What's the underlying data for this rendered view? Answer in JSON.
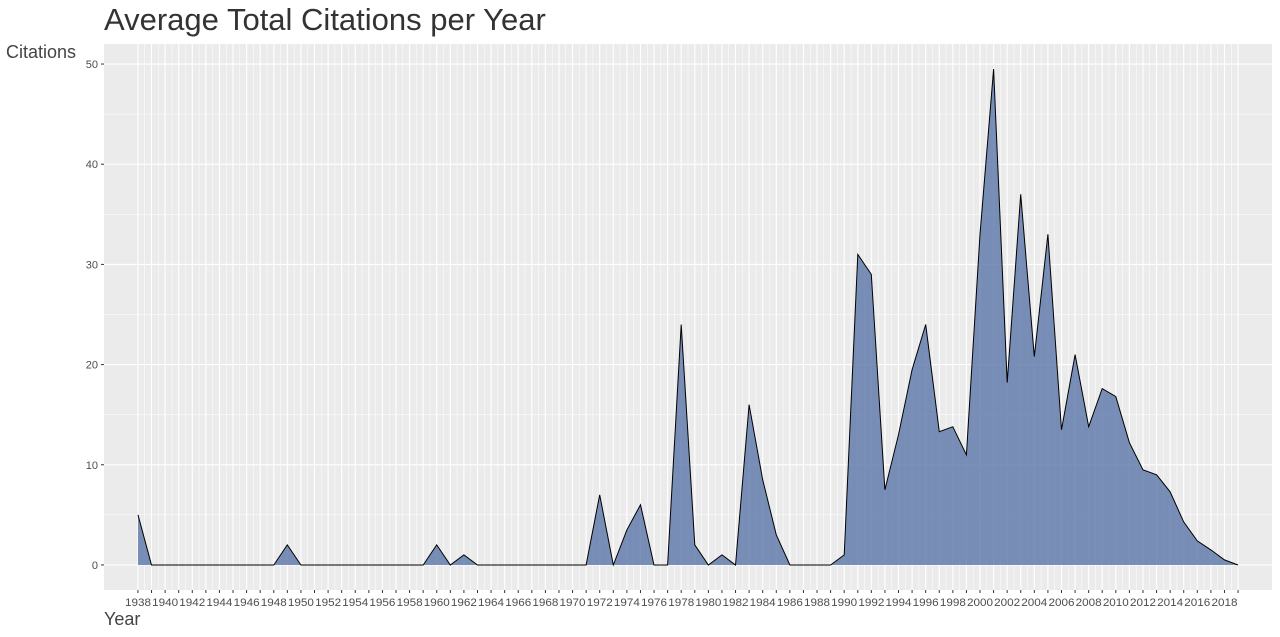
{
  "chart_data": {
    "type": "area",
    "title": "Average Total Citations per Year",
    "xlabel": "Year",
    "ylabel": "Citations",
    "xlim": [
      1935.5,
      2021.5
    ],
    "ylim": [
      -2.5,
      52
    ],
    "y_ticks": [
      0,
      10,
      20,
      30,
      40,
      50
    ],
    "x_ticks": [
      1938,
      1940,
      1942,
      1944,
      1946,
      1948,
      1950,
      1952,
      1954,
      1956,
      1958,
      1960,
      1962,
      1964,
      1966,
      1968,
      1970,
      1972,
      1974,
      1976,
      1978,
      1980,
      1982,
      1984,
      1986,
      1988,
      1990,
      1992,
      1994,
      1996,
      1998,
      2000,
      2002,
      2004,
      2006,
      2008,
      2010,
      2012,
      2014,
      2016,
      2018
    ],
    "grid": true,
    "colors": {
      "fill": "#5a75a8",
      "line": "#000000",
      "panel": "#ebebeb",
      "grid": "#ffffff"
    },
    "series": [
      {
        "x": [
          1938,
          1939,
          1940,
          1941,
          1942,
          1943,
          1944,
          1945,
          1946,
          1947,
          1948,
          1949,
          1950,
          1951,
          1952,
          1953,
          1954,
          1955,
          1956,
          1957,
          1958,
          1959,
          1960,
          1961,
          1962,
          1963,
          1964,
          1965,
          1966,
          1967,
          1968,
          1969,
          1970,
          1971,
          1972,
          1973,
          1974,
          1975,
          1976,
          1977,
          1978,
          1979,
          1980,
          1981,
          1982,
          1983,
          1984,
          1985,
          1986,
          1987,
          1988,
          1989,
          1990,
          1991,
          1992,
          1993,
          1994,
          1995,
          1996,
          1997,
          1998,
          1999,
          2000,
          2001,
          2002,
          2003,
          2004,
          2005,
          2006,
          2007,
          2008,
          2009,
          2010,
          2011,
          2012,
          2013,
          2014,
          2015,
          2016,
          2017,
          2018,
          2019
        ],
        "values": [
          5,
          0,
          0,
          0,
          0,
          0,
          0,
          0,
          0,
          0,
          0,
          2,
          0,
          0,
          0,
          0,
          0,
          0,
          0,
          0,
          0,
          0,
          2,
          0,
          1,
          0,
          0,
          0,
          0,
          0,
          0,
          0,
          0,
          0,
          7,
          0,
          3.5,
          6,
          0,
          0,
          24,
          2,
          0,
          1,
          0,
          16,
          8.5,
          3,
          0,
          0,
          0,
          0,
          1,
          31,
          29,
          7.5,
          13,
          19.5,
          24,
          13.3,
          13.8,
          11,
          33,
          49.5,
          18.2,
          37,
          20.8,
          33,
          13.5,
          21,
          13.8,
          17.6,
          16.8,
          12.2,
          9.5,
          9,
          7.3,
          4.3,
          2.4,
          1.5,
          0.5,
          0
        ]
      }
    ]
  }
}
